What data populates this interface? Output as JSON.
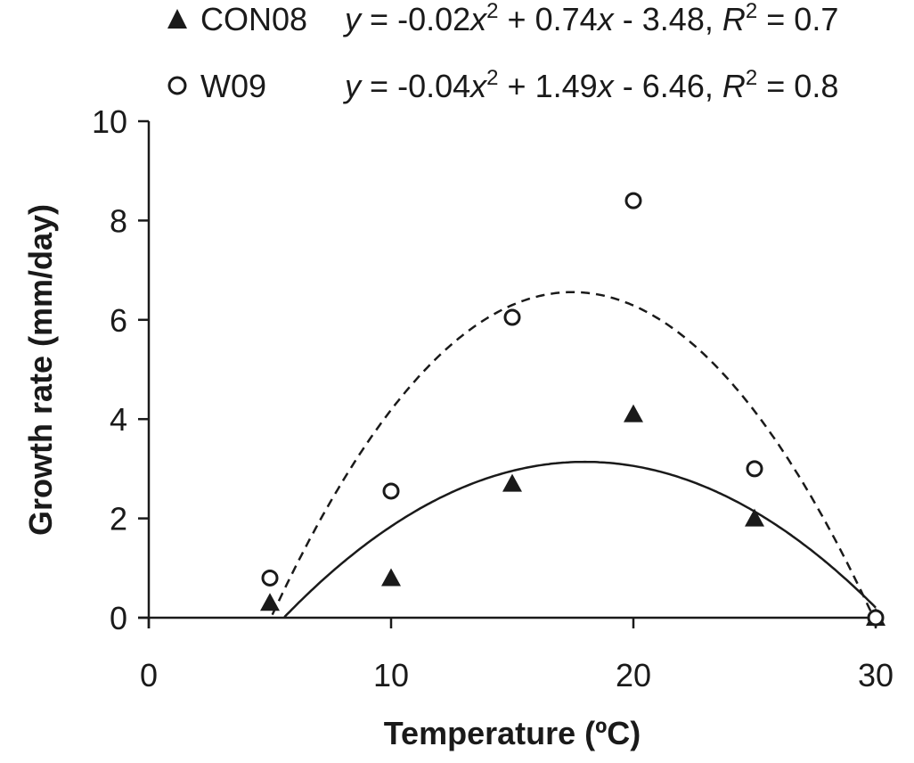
{
  "chart_data": {
    "type": "scatter",
    "xlabel": "Temperature (ºC)",
    "ylabel": "Growth rate (mm/day)",
    "xlim": [
      0,
      30
    ],
    "ylim": [
      0,
      10
    ],
    "x_ticks": [
      "0",
      "10",
      "20",
      "30"
    ],
    "y_ticks": [
      "0",
      "2",
      "4",
      "6",
      "8",
      "10"
    ],
    "grid": false,
    "legend_position": "top",
    "series": [
      {
        "name": "CON08",
        "marker": "filled-triangle",
        "line_style": "solid",
        "color": "#1a1a1a",
        "equation": "y = -0.02x² + 0.74x - 3.48, R² = 0.7",
        "x": [
          5,
          10,
          15,
          20,
          25,
          30
        ],
        "y": [
          0.3,
          0.8,
          2.7,
          4.1,
          2.0,
          0.0
        ]
      },
      {
        "name": "W09",
        "marker": "open-circle",
        "line_style": "dashed",
        "color": "#1a1a1a",
        "equation": "y = -0.04x² + 1.49x - 6.46, R² = 0.8",
        "x": [
          5,
          10,
          15,
          20,
          25,
          30
        ],
        "y": [
          0.8,
          2.55,
          6.05,
          8.4,
          3.0,
          0.0
        ]
      }
    ]
  }
}
